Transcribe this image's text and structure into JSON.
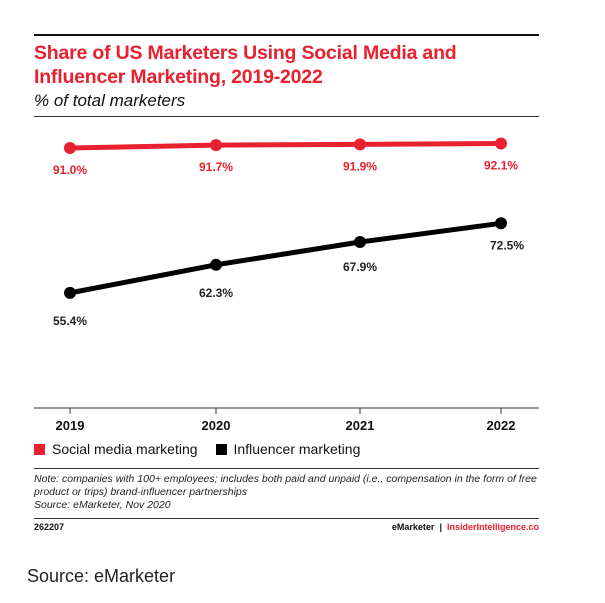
{
  "chart_data": {
    "type": "line",
    "title": "Share of US Marketers Using Social Media and Influencer Marketing, 2019-2022",
    "subtitle": "% of total marketers",
    "categories": [
      "2019",
      "2020",
      "2021",
      "2022"
    ],
    "series": [
      {
        "name": "Social media marketing",
        "color": "#e8202f",
        "values": [
          91.0,
          91.7,
          91.9,
          92.1
        ],
        "labels": [
          "91.0%",
          "91.7%",
          "91.9%",
          "92.1%"
        ]
      },
      {
        "name": "Influencer marketing",
        "color": "#000000",
        "values": [
          55.4,
          62.3,
          67.9,
          72.5
        ],
        "labels": [
          "55.4%",
          "62.3%",
          "67.9%",
          "72.5%"
        ]
      }
    ],
    "xlabel": "",
    "ylabel": "% of total marketers",
    "grid": false,
    "legend": "bottom-left"
  },
  "note": "Note: companies with 100+ employees; includes both paid and unpaid (i.e., compensation in the form of free product or trips) brand-influencer partnerships",
  "source_note": "Source: eMarketer, Nov 2020",
  "chart_id": "262207",
  "brand": {
    "emarketer": "eMarketer",
    "separator": "|",
    "insider": "InsiderIntelligence.co"
  },
  "page_source": "Source: eMarketer"
}
